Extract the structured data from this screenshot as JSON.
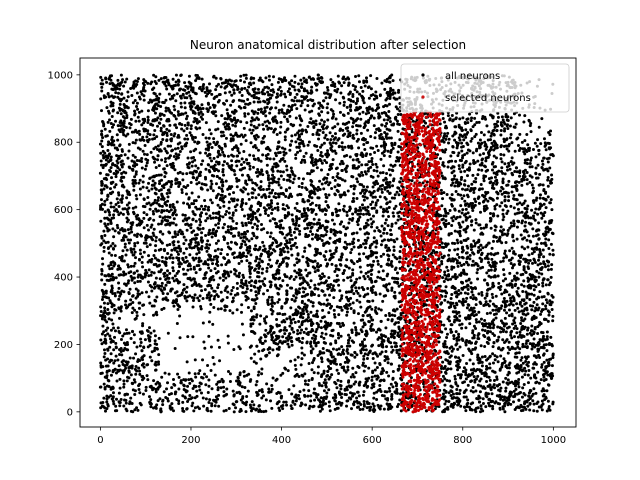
{
  "chart_data": {
    "type": "scatter",
    "title": "Neuron anatomical distribution after selection",
    "xlabel": "",
    "ylabel": "",
    "xlim": [
      -45,
      1050
    ],
    "ylim": [
      -45,
      1050
    ],
    "x_ticks": [
      0,
      200,
      400,
      600,
      800,
      1000
    ],
    "y_ticks": [
      0,
      200,
      400,
      600,
      800,
      1000
    ],
    "x_tick_labels": [
      "0",
      "200",
      "400",
      "600",
      "800",
      "1000"
    ],
    "y_tick_labels": [
      "0",
      "200",
      "400",
      "600",
      "800",
      "1000"
    ],
    "grid": false,
    "legend_position": "upper right",
    "series": [
      {
        "name": "all neurons",
        "color": "#000000",
        "marker": "circle",
        "count_approx": 9000,
        "region": {
          "x": [
            0,
            1000
          ],
          "y": [
            0,
            1000
          ]
        },
        "sample_points": [
          [
            100,
            980
          ],
          [
            150,
            900
          ],
          [
            40,
            650
          ],
          [
            250,
            700
          ],
          [
            380,
            600
          ],
          [
            520,
            480
          ],
          [
            560,
            300
          ],
          [
            620,
            200
          ],
          [
            700,
            950
          ],
          [
            800,
            600
          ],
          [
            880,
            300
          ],
          [
            950,
            100
          ],
          [
            980,
            500
          ],
          [
            1000,
            760
          ],
          [
            60,
            200
          ],
          [
            300,
            30
          ],
          [
            420,
            150
          ],
          [
            860,
            80
          ]
        ]
      },
      {
        "name": "selected neurons",
        "color": "#cc0000",
        "marker": "circle",
        "count_approx": 1700,
        "region": {
          "x": [
            665,
            750
          ],
          "y": [
            0,
            890
          ]
        },
        "sample_points": [
          [
            670,
            880
          ],
          [
            700,
            700
          ],
          [
            720,
            500
          ],
          [
            690,
            300
          ],
          [
            740,
            100
          ],
          [
            710,
            20
          ]
        ]
      }
    ]
  }
}
